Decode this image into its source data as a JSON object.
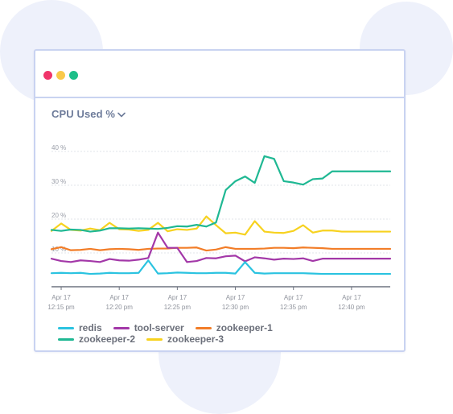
{
  "window": {
    "controls": [
      {
        "name": "close-dot",
        "color": "#f0346a"
      },
      {
        "name": "minimize-dot",
        "color": "#f9c94a"
      },
      {
        "name": "maximize-dot",
        "color": "#1dbf89"
      }
    ]
  },
  "chart_title": "CPU Used %",
  "chart_data": {
    "type": "line",
    "title": "CPU Used %",
    "xlabel": "",
    "ylabel": "",
    "x": [
      0,
      1,
      2,
      3,
      4,
      5,
      6,
      7,
      8,
      9,
      10,
      11,
      12,
      13,
      14,
      15,
      16,
      17,
      18,
      19,
      20,
      21,
      22,
      23,
      24,
      25,
      26,
      27,
      28,
      29,
      30,
      31,
      32,
      33,
      34,
      35
    ],
    "ylim": [
      0,
      40
    ],
    "xlim": [
      0,
      35
    ],
    "yticks": [
      {
        "value": 10,
        "label": "10 %"
      },
      {
        "value": 20,
        "label": "20 %"
      },
      {
        "value": 30,
        "label": "30 %"
      },
      {
        "value": 40,
        "label": "40 %"
      }
    ],
    "xticks": [
      {
        "index": 1,
        "line1": "Apr 17",
        "line2": "12:15 pm"
      },
      {
        "index": 7,
        "line1": "Apr 17",
        "line2": "12:20 pm"
      },
      {
        "index": 13,
        "line1": "Apr 17",
        "line2": "12:25 pm"
      },
      {
        "index": 19,
        "line1": "Apr 17",
        "line2": "12:30 pm"
      },
      {
        "index": 25,
        "line1": "Apr 17",
        "line2": "12:35 pm"
      },
      {
        "index": 31,
        "line1": "Apr 17",
        "line2": "12:40 pm"
      }
    ],
    "grid": false,
    "legend_position": "bottom",
    "series": [
      {
        "name": "zookeeper-3",
        "color": "#f7d21f",
        "values": [
          16.5,
          18.7,
          16.8,
          16.6,
          17.2,
          16.7,
          18.9,
          17.0,
          16.9,
          16.5,
          16.8,
          18.9,
          16.4,
          17.0,
          16.8,
          17.2,
          20.8,
          18.2,
          15.8,
          16.0,
          15.4,
          19.4,
          16.3,
          16.0,
          15.9,
          16.5,
          18.2,
          16.0,
          16.6,
          16.6,
          16.3,
          16.3,
          16.3,
          16.3,
          16.3,
          16.3
        ]
      },
      {
        "name": "zookeeper-2",
        "color": "#1fb893",
        "values": [
          16.8,
          16.5,
          16.9,
          16.8,
          16.3,
          16.6,
          17.3,
          17.3,
          17.2,
          17.3,
          17.2,
          17.1,
          17.4,
          17.9,
          17.8,
          18.3,
          17.8,
          19.0,
          28.6,
          31.2,
          32.6,
          30.7,
          38.6,
          37.8,
          31.2,
          30.8,
          30.2,
          31.8,
          32.0,
          34.1,
          34.1,
          34.1,
          34.1,
          34.1,
          34.1,
          34.1
        ]
      },
      {
        "name": "zookeeper-1",
        "color": "#f27d28",
        "values": [
          11.1,
          11.7,
          10.8,
          10.9,
          11.2,
          10.8,
          11.1,
          11.2,
          11.1,
          10.9,
          11.2,
          11.3,
          11.3,
          11.5,
          11.5,
          11.6,
          10.7,
          11.0,
          11.7,
          11.2,
          11.2,
          11.2,
          11.3,
          11.5,
          11.5,
          11.4,
          11.6,
          11.5,
          11.4,
          11.2,
          11.2,
          11.2,
          11.2,
          11.2,
          11.2,
          11.2
        ]
      },
      {
        "name": "tool-server",
        "color": "#a338a8",
        "values": [
          8.3,
          7.6,
          7.3,
          7.8,
          7.6,
          7.3,
          8.2,
          7.8,
          7.7,
          8.0,
          8.5,
          16.0,
          11.5,
          11.5,
          7.3,
          7.6,
          8.5,
          8.4,
          9.0,
          9.2,
          7.5,
          8.7,
          8.4,
          8.0,
          8.3,
          8.2,
          8.4,
          7.6,
          8.3,
          8.3,
          8.3,
          8.3,
          8.3,
          8.3,
          8.3,
          8.3
        ]
      },
      {
        "name": "redis",
        "color": "#2bc3e0",
        "values": [
          4.0,
          4.1,
          4.0,
          4.1,
          3.8,
          3.9,
          4.1,
          4.0,
          4.0,
          4.1,
          7.8,
          3.9,
          4.0,
          4.2,
          4.1,
          4.0,
          4.0,
          4.1,
          4.1,
          3.9,
          7.3,
          4.1,
          3.9,
          4.0,
          4.0,
          4.0,
          4.0,
          3.9,
          3.8,
          3.8,
          3.8,
          3.8,
          3.8,
          3.8,
          3.8,
          3.8
        ]
      }
    ]
  },
  "legend": [
    {
      "name": "redis",
      "color": "#2bc3e0"
    },
    {
      "name": "tool-server",
      "color": "#a338a8"
    },
    {
      "name": "zookeeper-1",
      "color": "#f27d28"
    },
    {
      "name": "zookeeper-2",
      "color": "#1fb893"
    },
    {
      "name": "zookeeper-3",
      "color": "#f7d21f"
    }
  ]
}
